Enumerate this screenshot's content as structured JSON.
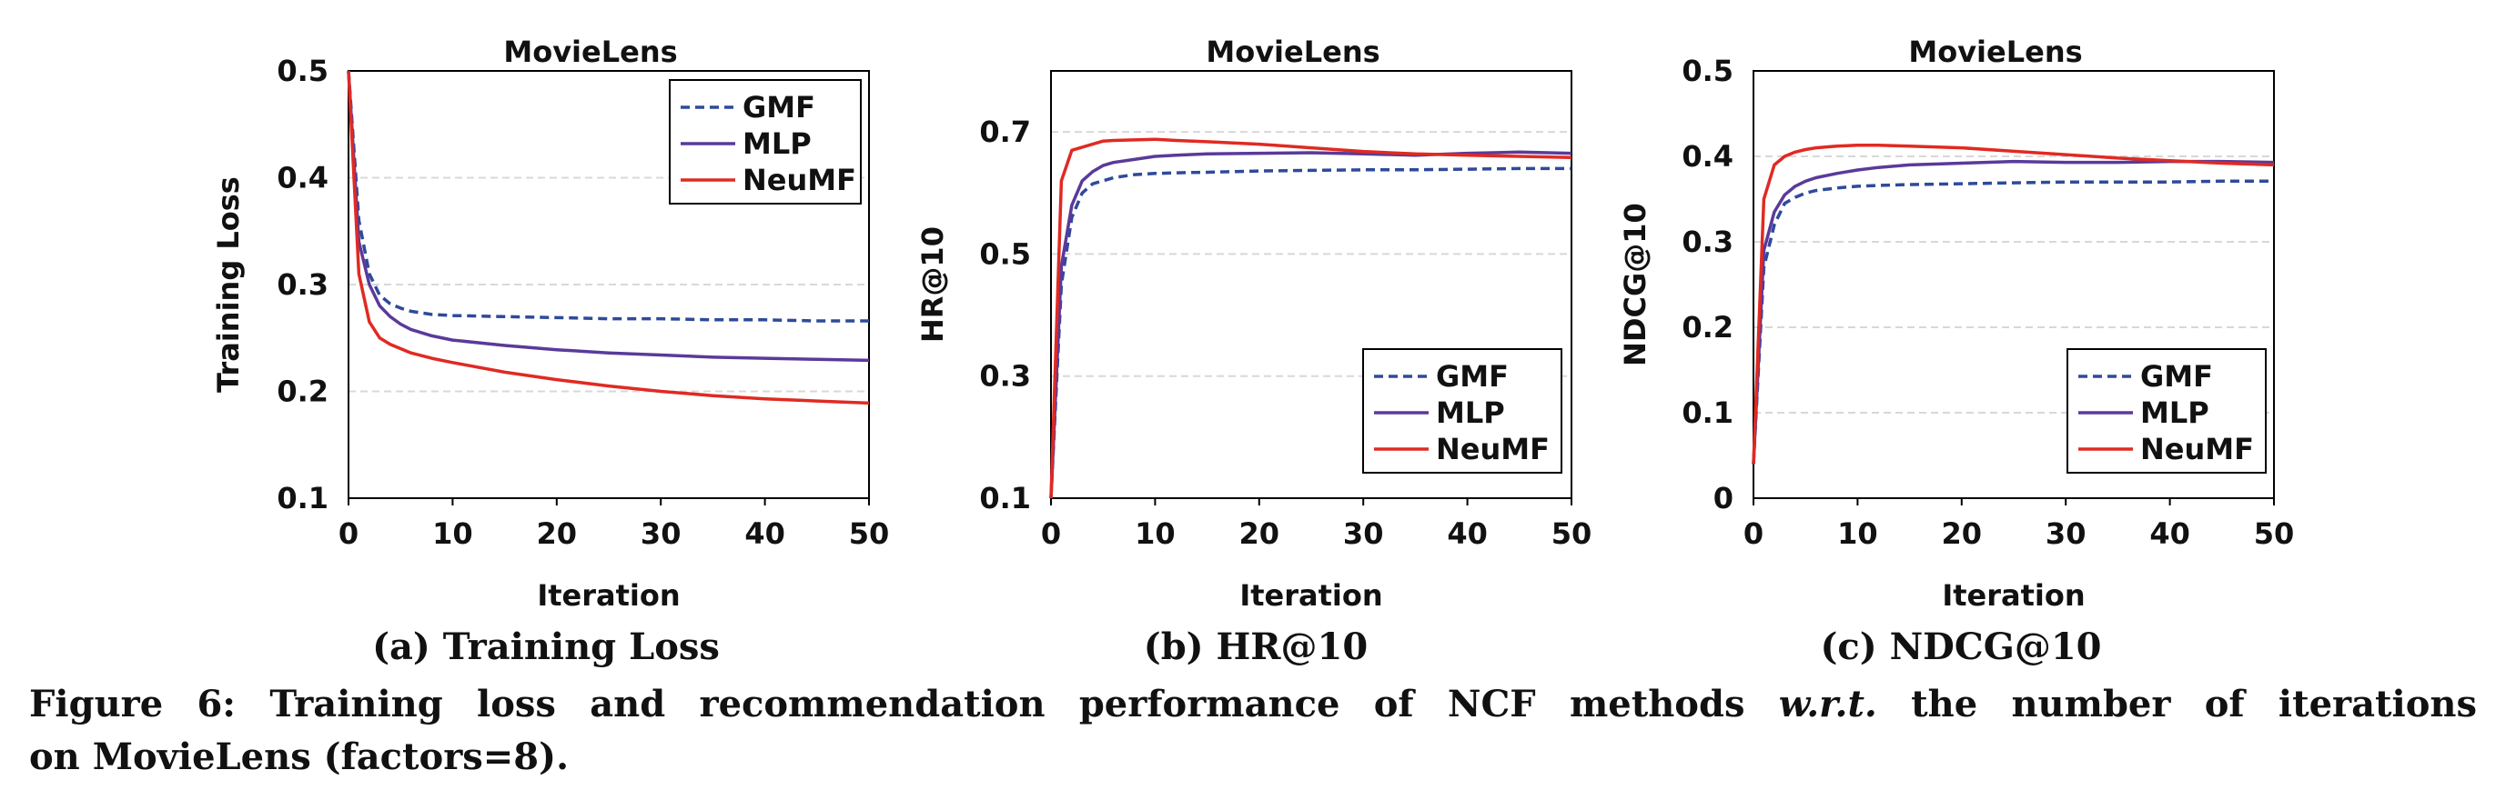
{
  "figure": {
    "caption_label": "Figure 6:",
    "caption_text_before": "Training loss and recommendation performance of NCF methods",
    "caption_italic": "w.r.t.",
    "caption_text_after": "the number of iterations",
    "caption_line2": "on MovieLens (factors=8)."
  },
  "colors": {
    "GMF": "#2e4a9a",
    "MLP": "#5a3a9a",
    "NeuMF": "#e02a22",
    "axis": "#000000",
    "grid": "#d8d8d8"
  },
  "chart_data": [
    {
      "type": "line",
      "title": "MovieLens",
      "subcaption": "(a) Training Loss",
      "xlabel": "Iteration",
      "ylabel": "Training Loss",
      "xlim": [
        0,
        50
      ],
      "ylim": [
        0.1,
        0.5
      ],
      "xticks": [
        "0",
        "10",
        "20",
        "30",
        "40",
        "50"
      ],
      "yticks": [
        "0.1",
        "0.2",
        "0.3",
        "0.4",
        "0.5"
      ],
      "legend": "top-right",
      "x": [
        0,
        1,
        2,
        3,
        4,
        5,
        6,
        8,
        10,
        15,
        20,
        25,
        30,
        35,
        40,
        45,
        50
      ],
      "series": [
        {
          "name": "GMF",
          "style": "dashed",
          "values": [
            0.5,
            0.36,
            0.31,
            0.29,
            0.282,
            0.278,
            0.275,
            0.272,
            0.271,
            0.27,
            0.269,
            0.268,
            0.268,
            0.267,
            0.267,
            0.266,
            0.266
          ]
        },
        {
          "name": "MLP",
          "style": "solid",
          "values": [
            0.5,
            0.34,
            0.3,
            0.28,
            0.27,
            0.263,
            0.258,
            0.252,
            0.248,
            0.243,
            0.239,
            0.236,
            0.234,
            0.232,
            0.231,
            0.23,
            0.229
          ]
        },
        {
          "name": "NeuMF",
          "style": "solid",
          "values": [
            0.5,
            0.31,
            0.265,
            0.25,
            0.244,
            0.24,
            0.236,
            0.231,
            0.227,
            0.218,
            0.211,
            0.205,
            0.2,
            0.196,
            0.193,
            0.191,
            0.189
          ]
        }
      ]
    },
    {
      "type": "line",
      "title": "MovieLens",
      "subcaption": "(b) HR@10",
      "xlabel": "Iteration",
      "ylabel": "HR@10",
      "xlim": [
        0,
        50
      ],
      "ylim": [
        0.1,
        0.8
      ],
      "xticks": [
        "0",
        "10",
        "20",
        "30",
        "40",
        "50"
      ],
      "yticks": [
        "0.1",
        "0.3",
        "0.5",
        "0.7"
      ],
      "gridlines": [
        0.1,
        0.3,
        0.5,
        0.7,
        0.8
      ],
      "legend": "bottom-right",
      "x": [
        0,
        1,
        2,
        3,
        4,
        5,
        6,
        8,
        10,
        12,
        15,
        20,
        25,
        30,
        35,
        40,
        45,
        50
      ],
      "series": [
        {
          "name": "GMF",
          "style": "dashed",
          "values": [
            0.1,
            0.45,
            0.56,
            0.6,
            0.615,
            0.62,
            0.625,
            0.63,
            0.632,
            0.633,
            0.634,
            0.636,
            0.637,
            0.638,
            0.638,
            0.639,
            0.64,
            0.64
          ]
        },
        {
          "name": "MLP",
          "style": "solid",
          "values": [
            0.1,
            0.48,
            0.58,
            0.62,
            0.635,
            0.645,
            0.65,
            0.655,
            0.66,
            0.662,
            0.664,
            0.665,
            0.666,
            0.664,
            0.662,
            0.665,
            0.667,
            0.665
          ]
        },
        {
          "name": "NeuMF",
          "style": "solid",
          "values": [
            0.1,
            0.62,
            0.67,
            0.675,
            0.68,
            0.685,
            0.686,
            0.687,
            0.688,
            0.686,
            0.684,
            0.68,
            0.674,
            0.668,
            0.664,
            0.662,
            0.66,
            0.658
          ]
        }
      ]
    },
    {
      "type": "line",
      "title": "MovieLens",
      "subcaption": "(c) NDCG@10",
      "xlabel": "Iteration",
      "ylabel": "NDCG@10",
      "xlim": [
        0,
        50
      ],
      "ylim": [
        0,
        0.5
      ],
      "xticks": [
        "0",
        "10",
        "20",
        "30",
        "40",
        "50"
      ],
      "yticks": [
        "0",
        "0.1",
        "0.2",
        "0.3",
        "0.4",
        "0.5"
      ],
      "legend": "bottom-right",
      "x": [
        0,
        1,
        2,
        3,
        4,
        5,
        6,
        8,
        10,
        12,
        15,
        20,
        25,
        30,
        35,
        40,
        45,
        50
      ],
      "series": [
        {
          "name": "GMF",
          "style": "dashed",
          "values": [
            0.04,
            0.27,
            0.32,
            0.345,
            0.352,
            0.357,
            0.36,
            0.363,
            0.365,
            0.366,
            0.367,
            0.368,
            0.369,
            0.37,
            0.37,
            0.37,
            0.371,
            0.371
          ]
        },
        {
          "name": "MLP",
          "style": "solid",
          "values": [
            0.04,
            0.29,
            0.335,
            0.355,
            0.365,
            0.371,
            0.375,
            0.38,
            0.384,
            0.387,
            0.39,
            0.392,
            0.394,
            0.393,
            0.393,
            0.394,
            0.394,
            0.393
          ]
        },
        {
          "name": "NeuMF",
          "style": "solid",
          "values": [
            0.04,
            0.35,
            0.39,
            0.4,
            0.405,
            0.408,
            0.41,
            0.412,
            0.413,
            0.413,
            0.412,
            0.41,
            0.406,
            0.402,
            0.398,
            0.395,
            0.392,
            0.39
          ]
        }
      ]
    }
  ]
}
